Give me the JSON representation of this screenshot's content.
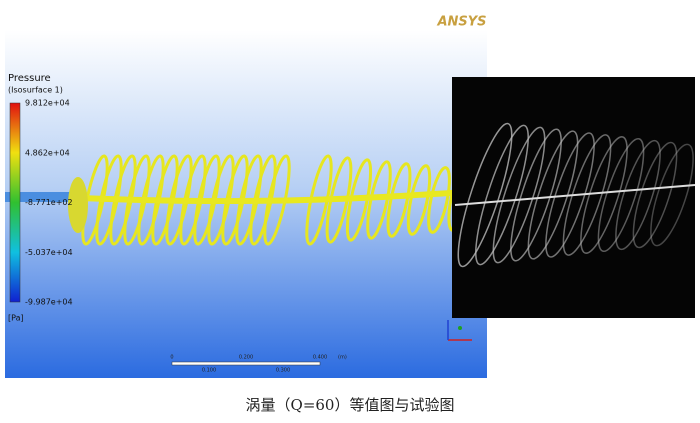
{
  "simulation": {
    "logo": "ANSYS",
    "legend_title": "Pressure",
    "legend_subtitle": "(Isosurface 1)",
    "legend_labels": [
      "9.812e+04",
      "4.862e+04",
      "-8.771e+02",
      "-5.037e+04",
      "-9.987e+04"
    ],
    "legend_unit": "[Pa]",
    "scale_top_labels": [
      "0",
      "0.200",
      "0.400"
    ],
    "scale_unit": "(m)",
    "scale_bottom_labels": [
      "0.100",
      "0.300"
    ]
  },
  "caption": "涡量（Q=60）等值图与试验图"
}
